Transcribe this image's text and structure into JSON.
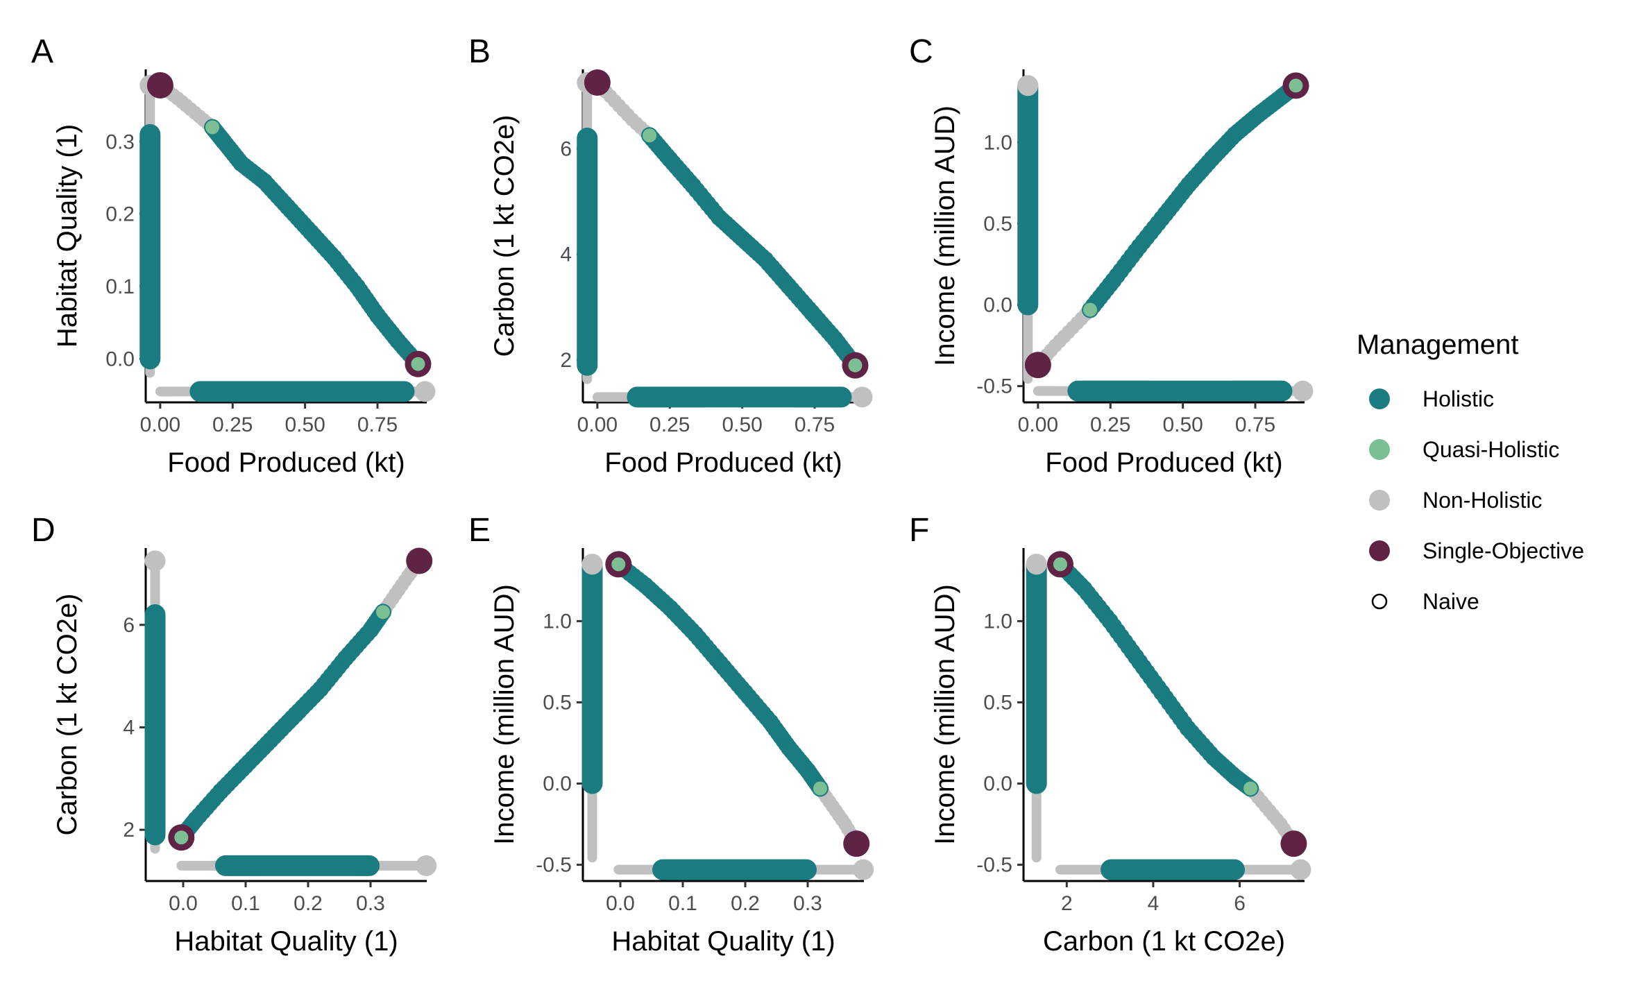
{
  "colors": {
    "holistic": "#1a7b80",
    "quasi_holistic": "#7cbf95",
    "non_holistic": "#c0c0c0",
    "single_objective": "#5e2345",
    "naive_stroke": "#000000"
  },
  "legend": {
    "title": "Management",
    "items": [
      {
        "label": "Holistic",
        "key": "holistic",
        "style": "filled"
      },
      {
        "label": "Quasi-Holistic",
        "key": "quasi_holistic",
        "style": "filled"
      },
      {
        "label": "Non-Holistic",
        "key": "non_holistic",
        "style": "filled"
      },
      {
        "label": "Single-Objective",
        "key": "single_objective",
        "style": "filled"
      },
      {
        "label": "Naive",
        "key": "naive",
        "style": "hollow"
      }
    ]
  },
  "chart_data": [
    {
      "panel": "A",
      "type": "scatter",
      "xlabel": "Food Produced (kt)",
      "ylabel": "Habitat Quality (1)",
      "xlim": [
        -0.05,
        0.92
      ],
      "ylim": [
        -0.06,
        0.4
      ],
      "xticks": [
        0,
        0.25,
        0.5,
        0.75
      ],
      "xtick_labels": [
        "0.00",
        "0.25",
        "0.50",
        "0.75"
      ],
      "yticks": [
        0,
        0.1,
        0.2,
        0.3
      ],
      "ytick_labels": [
        "0.0",
        "0.1",
        "0.2",
        "0.3"
      ],
      "naive_x": [
        -0.03,
        0.89
      ],
      "naive_y": [
        0.0,
        0.31
      ],
      "naive_y_base": -0.045,
      "naive_x_base": -0.035,
      "corner_y": [
        0.0,
        0.378
      ],
      "corner_x": [
        0.0,
        0.89
      ],
      "frontier": [
        [
          0.18,
          0.32
        ],
        [
          0.22,
          0.3
        ],
        [
          0.28,
          0.27
        ],
        [
          0.36,
          0.245
        ],
        [
          0.44,
          0.21
        ],
        [
          0.52,
          0.175
        ],
        [
          0.6,
          0.14
        ],
        [
          0.68,
          0.1
        ],
        [
          0.75,
          0.06
        ],
        [
          0.82,
          0.025
        ],
        [
          0.89,
          -0.007
        ]
      ],
      "quasi": [
        [
          0.18,
          0.32
        ],
        [
          0.89,
          -0.007
        ]
      ],
      "nonholistic_path": [
        [
          0.0,
          0.378
        ],
        [
          0.06,
          0.36
        ],
        [
          0.12,
          0.34
        ],
        [
          0.18,
          0.32
        ]
      ],
      "single": [
        [
          0.0,
          0.378
        ],
        [
          0.89,
          -0.007
        ]
      ]
    },
    {
      "panel": "B",
      "type": "scatter",
      "xlabel": "Food Produced (kt)",
      "ylabel": "Carbon (1 kt CO2e)",
      "xlim": [
        -0.05,
        0.92
      ],
      "ylim": [
        1.2,
        7.5
      ],
      "xticks": [
        0,
        0.25,
        0.5,
        0.75
      ],
      "xtick_labels": [
        "0.00",
        "0.25",
        "0.50",
        "0.75"
      ],
      "yticks": [
        2,
        4,
        6
      ],
      "ytick_labels": [
        "2",
        "4",
        "6"
      ],
      "naive_x": [
        -0.03,
        0.89
      ],
      "naive_y": [
        1.9,
        6.2
      ],
      "naive_y_base": 1.3,
      "naive_x_base": -0.035,
      "corner_y": [
        1.9,
        7.25
      ],
      "corner_x": [
        0.0,
        0.89
      ],
      "frontier": [
        [
          0.18,
          6.25
        ],
        [
          0.25,
          5.8
        ],
        [
          0.33,
          5.3
        ],
        [
          0.42,
          4.7
        ],
        [
          0.5,
          4.3
        ],
        [
          0.58,
          3.9
        ],
        [
          0.66,
          3.4
        ],
        [
          0.74,
          2.9
        ],
        [
          0.82,
          2.4
        ],
        [
          0.89,
          1.9
        ]
      ],
      "quasi": [
        [
          0.18,
          6.25
        ],
        [
          0.89,
          1.9
        ]
      ],
      "nonholistic_path": [
        [
          0.0,
          7.25
        ],
        [
          0.06,
          6.9
        ],
        [
          0.12,
          6.55
        ],
        [
          0.18,
          6.25
        ]
      ],
      "single": [
        [
          0.0,
          7.25
        ],
        [
          0.89,
          1.9
        ]
      ]
    },
    {
      "panel": "C",
      "type": "scatter",
      "xlabel": "Food Produced (kt)",
      "ylabel": "Income (million AUD)",
      "xlim": [
        -0.05,
        0.92
      ],
      "ylim": [
        -0.6,
        1.45
      ],
      "xticks": [
        0,
        0.25,
        0.5,
        0.75
      ],
      "xtick_labels": [
        "0.00",
        "0.25",
        "0.50",
        "0.75"
      ],
      "yticks": [
        -0.5,
        0,
        0.5,
        1.0
      ],
      "ytick_labels": [
        "-0.5",
        "0.0",
        "0.5",
        "1.0"
      ],
      "naive_x": [
        -0.03,
        0.89
      ],
      "naive_y": [
        0.0,
        1.35
      ],
      "naive_y_base": -0.53,
      "naive_x_base": -0.035,
      "corner_y": [
        -0.37,
        1.35
      ],
      "corner_x": [
        0.0,
        0.89
      ],
      "frontier": [
        [
          0.18,
          -0.03
        ],
        [
          0.26,
          0.15
        ],
        [
          0.35,
          0.36
        ],
        [
          0.44,
          0.56
        ],
        [
          0.52,
          0.74
        ],
        [
          0.6,
          0.9
        ],
        [
          0.68,
          1.05
        ],
        [
          0.76,
          1.17
        ],
        [
          0.84,
          1.28
        ],
        [
          0.89,
          1.35
        ]
      ],
      "quasi": [
        [
          0.18,
          -0.03
        ],
        [
          0.89,
          1.35
        ]
      ],
      "nonholistic_path": [
        [
          0.0,
          -0.37
        ],
        [
          0.06,
          -0.25
        ],
        [
          0.12,
          -0.14
        ],
        [
          0.18,
          -0.03
        ]
      ],
      "single": [
        [
          0.0,
          -0.37
        ],
        [
          0.89,
          1.35
        ]
      ]
    },
    {
      "panel": "D",
      "type": "scatter",
      "xlabel": "Habitat Quality (1)",
      "ylabel": "Carbon (1 kt CO2e)",
      "xlim": [
        -0.06,
        0.39
      ],
      "ylim": [
        1.0,
        7.5
      ],
      "xticks": [
        0,
        0.1,
        0.2,
        0.3
      ],
      "xtick_labels": [
        "0.0",
        "0.1",
        "0.2",
        "0.3"
      ],
      "yticks": [
        2,
        4,
        6
      ],
      "ytick_labels": [
        "2",
        "4",
        "6"
      ],
      "naive_x": [
        -0.01,
        0.32
      ],
      "naive_y": [
        1.9,
        6.2
      ],
      "naive_y_base": 1.3,
      "naive_x_base": -0.045,
      "corner_y": [
        1.9,
        7.25
      ],
      "corner_x": [
        -0.003,
        0.378
      ],
      "frontier": [
        [
          -0.003,
          1.85
        ],
        [
          0.02,
          2.2
        ],
        [
          0.06,
          2.75
        ],
        [
          0.1,
          3.25
        ],
        [
          0.14,
          3.75
        ],
        [
          0.18,
          4.25
        ],
        [
          0.22,
          4.75
        ],
        [
          0.26,
          5.35
        ],
        [
          0.3,
          5.9
        ],
        [
          0.32,
          6.25
        ]
      ],
      "quasi": [
        [
          -0.003,
          1.85
        ],
        [
          0.32,
          6.25
        ]
      ],
      "nonholistic_path": [
        [
          0.32,
          6.25
        ],
        [
          0.34,
          6.6
        ],
        [
          0.36,
          6.95
        ],
        [
          0.378,
          7.25
        ]
      ],
      "single": [
        [
          -0.003,
          1.85
        ],
        [
          0.378,
          7.25
        ]
      ]
    },
    {
      "panel": "E",
      "type": "scatter",
      "xlabel": "Habitat Quality (1)",
      "ylabel": "Income (million AUD)",
      "xlim": [
        -0.06,
        0.39
      ],
      "ylim": [
        -0.6,
        1.45
      ],
      "xticks": [
        0,
        0.1,
        0.2,
        0.3
      ],
      "xtick_labels": [
        "0.0",
        "0.1",
        "0.2",
        "0.3"
      ],
      "yticks": [
        -0.5,
        0,
        0.5,
        1.0
      ],
      "ytick_labels": [
        "-0.5",
        "0.0",
        "0.5",
        "1.0"
      ],
      "naive_x": [
        -0.01,
        0.32
      ],
      "naive_y": [
        0.0,
        1.35
      ],
      "naive_y_base": -0.53,
      "naive_x_base": -0.045,
      "corner_y": [
        -0.37,
        1.35
      ],
      "corner_x": [
        -0.003,
        0.378
      ],
      "frontier": [
        [
          -0.003,
          1.35
        ],
        [
          0.04,
          1.22
        ],
        [
          0.08,
          1.08
        ],
        [
          0.12,
          0.92
        ],
        [
          0.16,
          0.74
        ],
        [
          0.2,
          0.56
        ],
        [
          0.24,
          0.38
        ],
        [
          0.27,
          0.22
        ],
        [
          0.3,
          0.08
        ],
        [
          0.32,
          -0.03
        ]
      ],
      "quasi": [
        [
          -0.003,
          1.35
        ],
        [
          0.32,
          -0.03
        ]
      ],
      "nonholistic_path": [
        [
          0.32,
          -0.03
        ],
        [
          0.34,
          -0.14
        ],
        [
          0.36,
          -0.25
        ],
        [
          0.378,
          -0.37
        ]
      ],
      "single": [
        [
          -0.003,
          1.35
        ],
        [
          0.378,
          -0.37
        ]
      ]
    },
    {
      "panel": "F",
      "type": "scatter",
      "xlabel": "Carbon (1 kt CO2e)",
      "ylabel": "Income (million AUD)",
      "xlim": [
        1.0,
        7.5
      ],
      "ylim": [
        -0.6,
        1.45
      ],
      "xticks": [
        2,
        4,
        6
      ],
      "xtick_labels": [
        "2",
        "4",
        "6"
      ],
      "yticks": [
        -0.5,
        0,
        0.5,
        1.0
      ],
      "ytick_labels": [
        "-0.5",
        "0.0",
        "0.5",
        "1.0"
      ],
      "naive_x": [
        1.9,
        6.2
      ],
      "naive_y": [
        0.0,
        1.35
      ],
      "naive_y_base": -0.53,
      "naive_x_base": 1.3,
      "corner_y": [
        -0.37,
        1.35
      ],
      "corner_x": [
        1.85,
        7.25
      ],
      "frontier": [
        [
          1.85,
          1.35
        ],
        [
          2.4,
          1.2
        ],
        [
          3.0,
          1.0
        ],
        [
          3.6,
          0.78
        ],
        [
          4.2,
          0.56
        ],
        [
          4.8,
          0.34
        ],
        [
          5.4,
          0.16
        ],
        [
          5.9,
          0.04
        ],
        [
          6.25,
          -0.03
        ]
      ],
      "quasi": [
        [
          1.85,
          1.35
        ],
        [
          6.25,
          -0.03
        ]
      ],
      "nonholistic_path": [
        [
          6.25,
          -0.03
        ],
        [
          6.6,
          -0.14
        ],
        [
          6.95,
          -0.25
        ],
        [
          7.25,
          -0.37
        ]
      ],
      "single": [
        [
          1.85,
          1.35
        ],
        [
          7.25,
          -0.37
        ]
      ]
    }
  ]
}
